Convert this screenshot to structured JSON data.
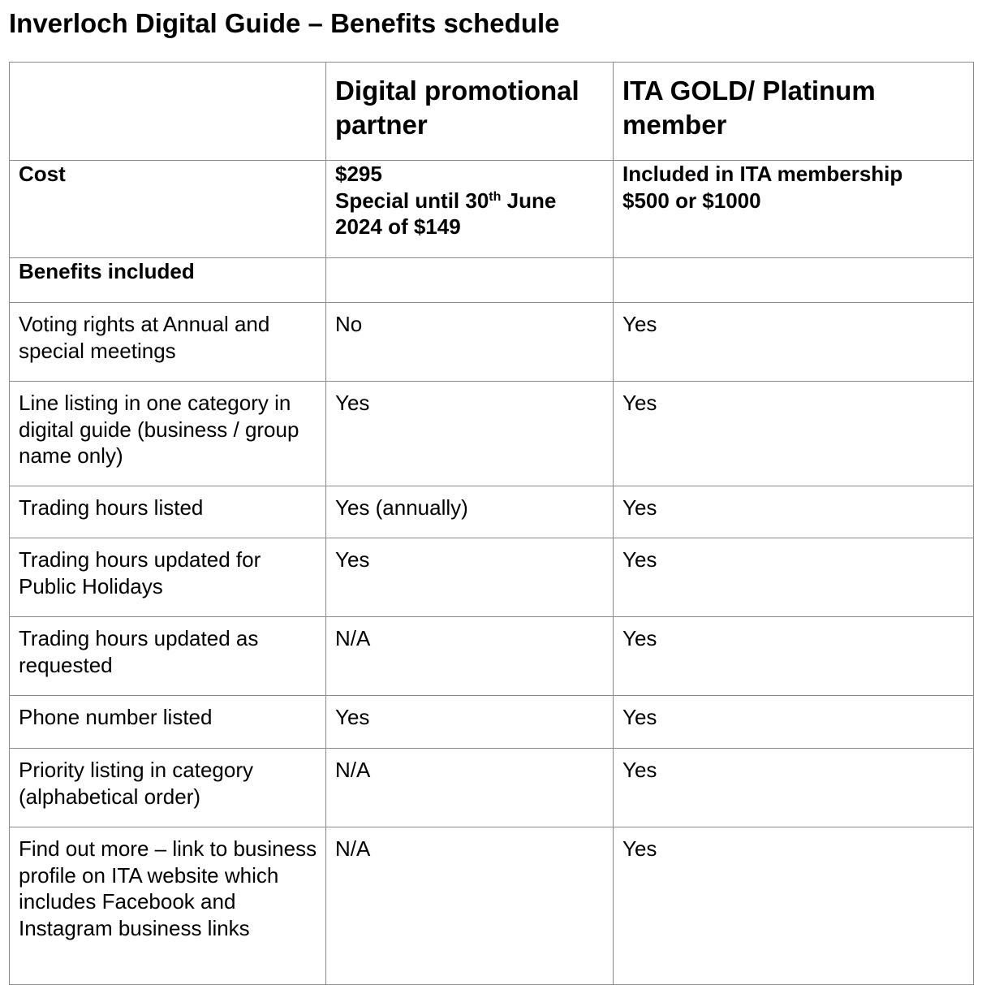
{
  "title": "Inverloch Digital Guide – Benefits schedule",
  "table": {
    "header": {
      "blank": "",
      "col2": "Digital promotional partner",
      "col3": "ITA GOLD/ Platinum member"
    },
    "cost": {
      "label": "Cost",
      "col2_price": "$295",
      "col2_special_prefix": "Special until 30",
      "col2_special_sup": "th",
      "col2_special_suffix": " June 2024 of $149",
      "col3_line1": "Included in ITA membership",
      "col3_line2": "$500 or $1000"
    },
    "benefits_heading": "Benefits included",
    "rows": [
      {
        "label": "Voting rights at Annual and special meetings",
        "partner": "No",
        "member": "Yes"
      },
      {
        "label": "Line listing in one category in digital guide (business / group name only)",
        "partner": "Yes",
        "member": "Yes"
      },
      {
        "label": "Trading hours listed",
        "partner": "Yes (annually)",
        "member": "Yes"
      },
      {
        "label": "Trading hours updated for Public Holidays",
        "partner": "Yes",
        "member": "Yes"
      },
      {
        "label": "Trading hours updated as requested",
        "partner": "N/A",
        "member": "Yes"
      },
      {
        "label": "Phone number listed",
        "partner": "Yes",
        "member": "Yes"
      },
      {
        "label": "Priority listing in category (alphabetical order)",
        "partner": "N/A",
        "member": "Yes"
      },
      {
        "label": "Find out more – link to business profile on ITA website which includes Facebook and Instagram business links",
        "partner": "N/A",
        "member": "Yes"
      }
    ]
  }
}
